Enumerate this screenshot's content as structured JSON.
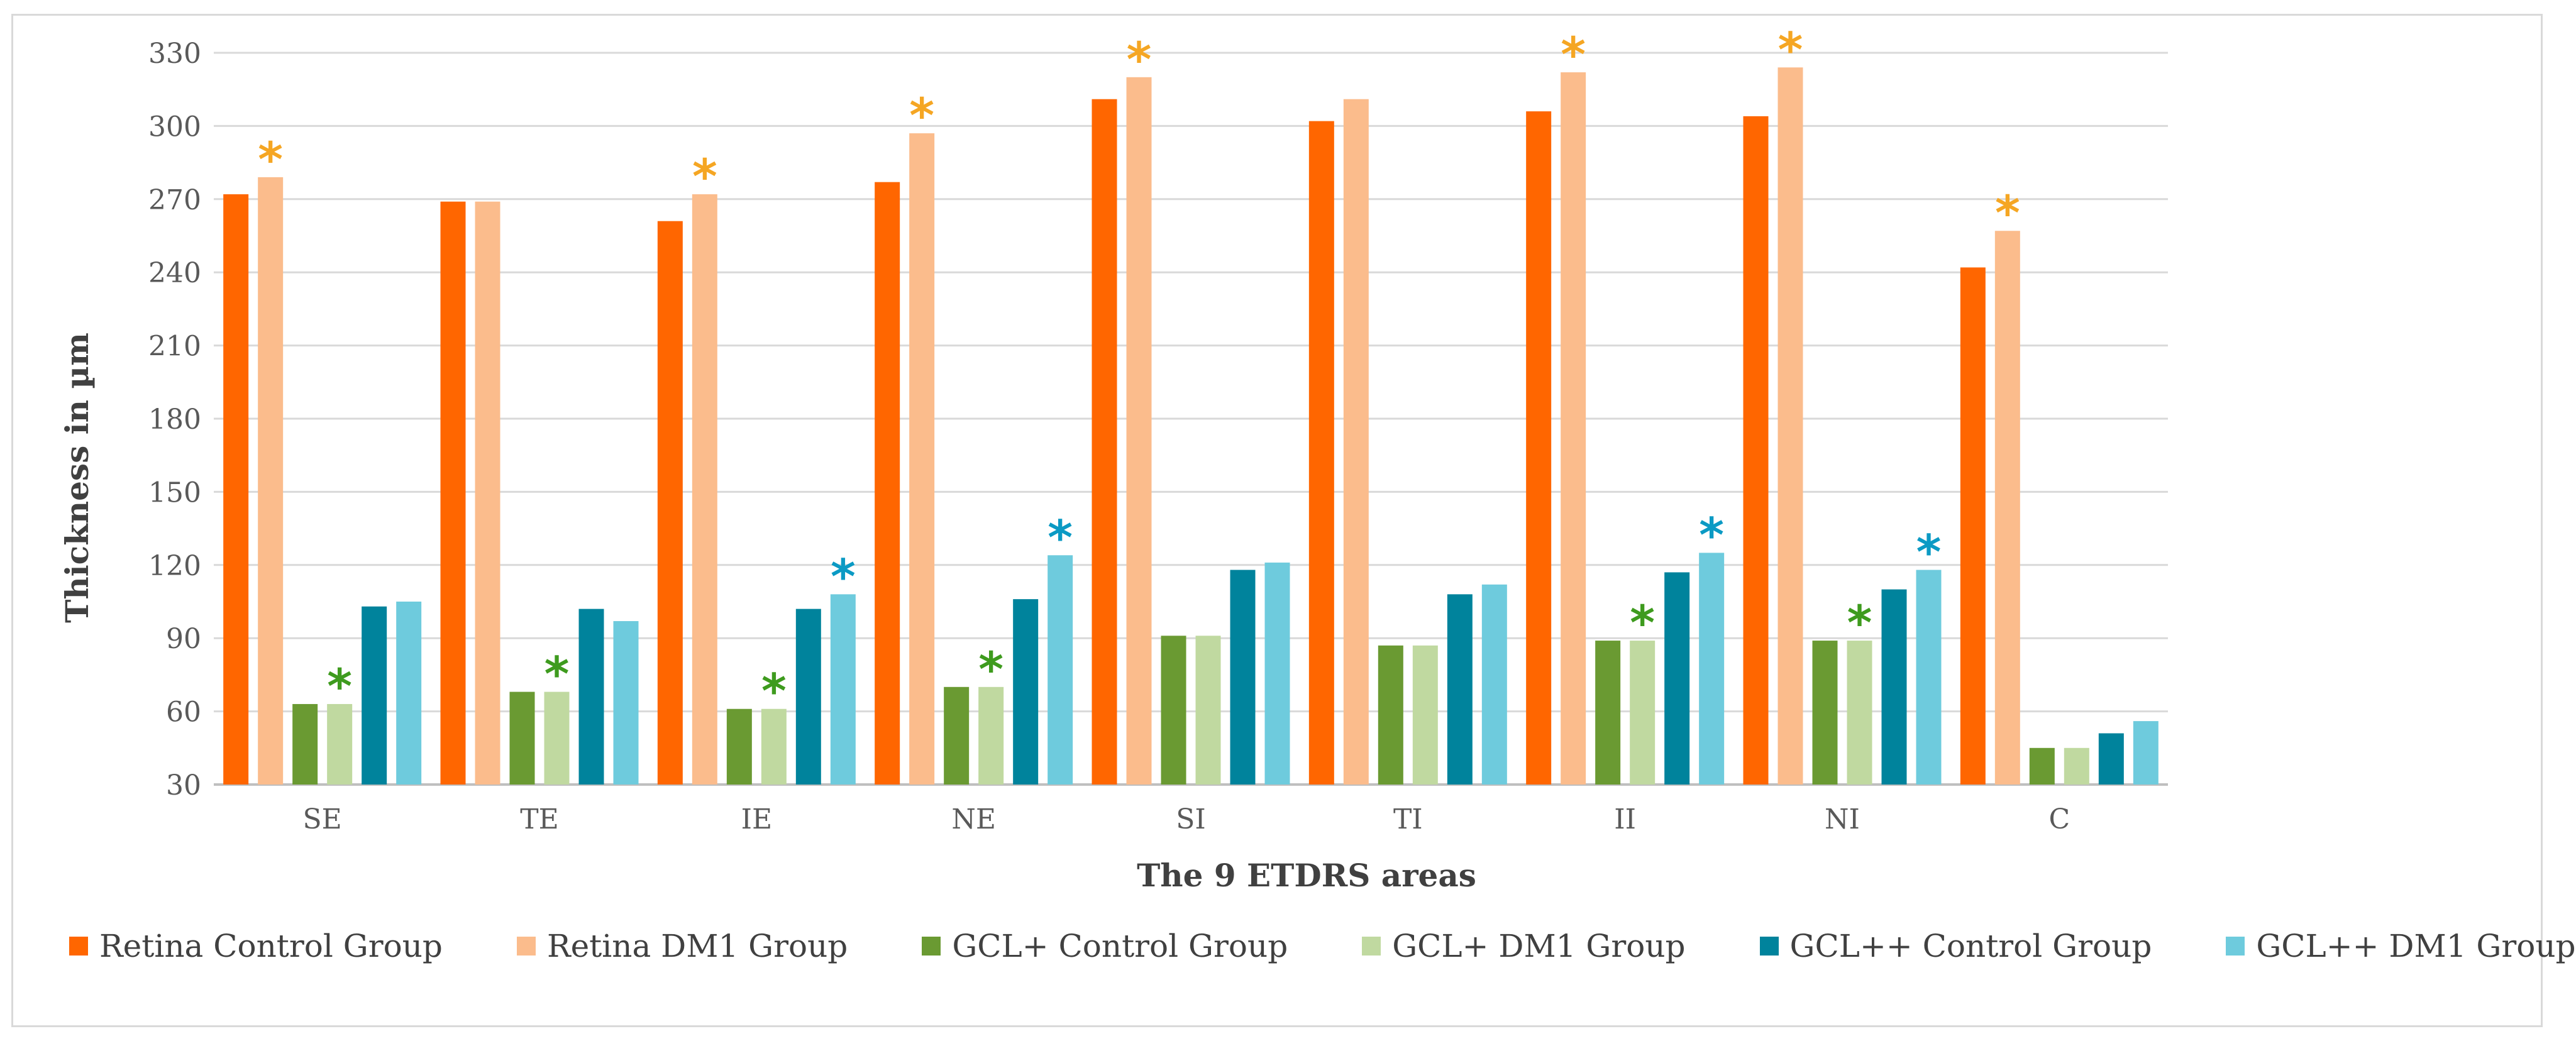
{
  "chart_data": {
    "type": "bar",
    "title": "",
    "xlabel": "The 9 ETDRS areas",
    "ylabel": "Thickness in µm",
    "ylim": [
      30,
      330
    ],
    "yticks": [
      30,
      60,
      90,
      120,
      150,
      180,
      210,
      240,
      270,
      300,
      330
    ],
    "grid": "horizontal",
    "legend_position": "bottom",
    "categories": [
      "SE",
      "TE",
      "IE",
      "NE",
      "SI",
      "TI",
      "II",
      "NI",
      "C"
    ],
    "series": [
      {
        "name": "Retina Control Group",
        "color": "#ff6600",
        "values": [
          272,
          269,
          261,
          277,
          311,
          302,
          306,
          304,
          242
        ]
      },
      {
        "name": "Retina DM1 Group",
        "color": "#fbbc8c",
        "values": [
          279,
          269,
          272,
          297,
          320,
          311,
          322,
          324,
          257
        ]
      },
      {
        "name": "GCL+ Control Group",
        "color": "#6a9a32",
        "values": [
          63,
          68,
          61,
          70,
          91,
          87,
          89,
          89,
          45
        ]
      },
      {
        "name": "GCL+ DM1 Group",
        "color": "#c0d9a0",
        "values": [
          63,
          68,
          61,
          70,
          91,
          87,
          89,
          89,
          45
        ]
      },
      {
        "name": "GCL++ Control Group",
        "color": "#00839c",
        "values": [
          103,
          102,
          102,
          106,
          118,
          108,
          117,
          110,
          51
        ]
      },
      {
        "name": "GCL++ DM1 Group",
        "color": "#6ecbdd",
        "values": [
          105,
          97,
          108,
          124,
          121,
          112,
          125,
          118,
          56
        ]
      }
    ],
    "annotations": [
      {
        "text": "*",
        "category": "SE",
        "series": "Retina DM1 Group",
        "color": "#f5a623"
      },
      {
        "text": "*",
        "category": "IE",
        "series": "Retina DM1 Group",
        "color": "#f5a623"
      },
      {
        "text": "*",
        "category": "NE",
        "series": "Retina DM1 Group",
        "color": "#f5a623"
      },
      {
        "text": "*",
        "category": "SI",
        "series": "Retina DM1 Group",
        "color": "#f5a623"
      },
      {
        "text": "*",
        "category": "II",
        "series": "Retina DM1 Group",
        "color": "#f5a623"
      },
      {
        "text": "*",
        "category": "NI",
        "series": "Retina DM1 Group",
        "color": "#f5a623"
      },
      {
        "text": "*",
        "category": "C",
        "series": "Retina DM1 Group",
        "color": "#f5a623"
      },
      {
        "text": "*",
        "category": "SE",
        "series": "GCL+ DM1 Group",
        "color": "#3e9b1e"
      },
      {
        "text": "*",
        "category": "TE",
        "series": "GCL+ DM1 Group",
        "color": "#3e9b1e"
      },
      {
        "text": "*",
        "category": "IE",
        "series": "GCL+ DM1 Group",
        "color": "#3e9b1e"
      },
      {
        "text": "*",
        "category": "NE",
        "series": "GCL+ DM1 Group",
        "color": "#3e9b1e"
      },
      {
        "text": "*",
        "category": "II",
        "series": "GCL+ DM1 Group",
        "color": "#3e9b1e"
      },
      {
        "text": "*",
        "category": "NI",
        "series": "GCL+ DM1 Group",
        "color": "#3e9b1e"
      },
      {
        "text": "*",
        "category": "IE",
        "series": "GCL++ DM1 Group",
        "color": "#0b9ac4"
      },
      {
        "text": "*",
        "category": "NE",
        "series": "GCL++ DM1 Group",
        "color": "#0b9ac4"
      },
      {
        "text": "*",
        "category": "II",
        "series": "GCL++ DM1 Group",
        "color": "#0b9ac4"
      },
      {
        "text": "*",
        "category": "NI",
        "series": "GCL++ DM1 Group",
        "color": "#0b9ac4"
      }
    ]
  }
}
